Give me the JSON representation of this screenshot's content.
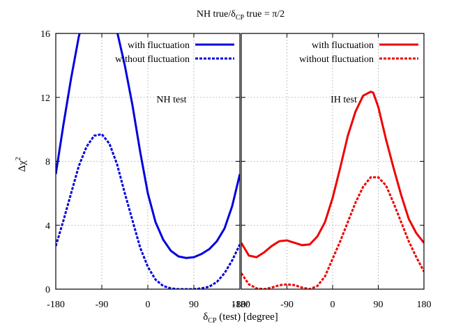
{
  "title": "NH true/δ_CP true = π/2",
  "title_parts": {
    "a": "NH true/δ",
    "sub": "CP",
    "b": " true = π/2"
  },
  "xlabel_parts": {
    "a": "δ",
    "sub": "CP",
    "b": " (test) [degree]"
  },
  "ylabel_parts": {
    "a": "Δχ",
    "sup": "2"
  },
  "chart_data": [
    {
      "type": "line",
      "panel_label": "NH test",
      "xlim": [
        -180,
        180
      ],
      "ylim": [
        0,
        16
      ],
      "grid": true,
      "legend_position": "top-right",
      "x_tick_labels": [
        "-180",
        "-90",
        "0",
        "90",
        "180/"
      ],
      "y_tick_labels": [
        "0",
        "4",
        "8",
        "12",
        "16"
      ],
      "series": [
        {
          "name": "with fluctuation",
          "color": "#0000dd",
          "dash": "solid",
          "x": [
            -180,
            -165,
            -150,
            -135,
            -120,
            -105,
            -90,
            -75,
            -60,
            -45,
            -30,
            -15,
            0,
            15,
            30,
            45,
            60,
            75,
            90,
            105,
            120,
            135,
            150,
            165,
            180
          ],
          "y": [
            7.2,
            10.3,
            13.2,
            15.8,
            17.6,
            18.3,
            18.2,
            17.5,
            16.1,
            14.0,
            11.5,
            8.6,
            6.0,
            4.2,
            3.1,
            2.4,
            2.05,
            1.95,
            2.0,
            2.2,
            2.5,
            3.0,
            3.8,
            5.2,
            7.2
          ]
        },
        {
          "name": "without fluctuation",
          "color": "#0000dd",
          "dash": "dashed",
          "x": [
            -180,
            -165,
            -150,
            -135,
            -120,
            -105,
            -90,
            -75,
            -60,
            -45,
            -30,
            -15,
            0,
            15,
            30,
            45,
            60,
            75,
            90,
            105,
            120,
            135,
            150,
            165,
            180
          ],
          "y": [
            2.7,
            4.3,
            6.0,
            7.7,
            8.9,
            9.6,
            9.7,
            9.1,
            7.8,
            6.0,
            4.3,
            2.6,
            1.4,
            0.6,
            0.2,
            0.05,
            0.0,
            0.0,
            0.0,
            0.05,
            0.15,
            0.45,
            1.0,
            1.8,
            2.8
          ]
        }
      ]
    },
    {
      "type": "line",
      "panel_label": "IH test",
      "xlim": [
        -180,
        180
      ],
      "ylim": [
        0,
        16
      ],
      "grid": true,
      "legend_position": "top-right",
      "x_tick_labels": [
        "-180",
        "-90",
        "0",
        "90",
        "180"
      ],
      "y_tick_labels": [],
      "series": [
        {
          "name": "with fluctuation",
          "color": "#ee0000",
          "dash": "solid",
          "x": [
            -180,
            -165,
            -150,
            -135,
            -120,
            -105,
            -90,
            -75,
            -60,
            -45,
            -30,
            -15,
            0,
            15,
            30,
            45,
            60,
            75,
            80,
            90,
            105,
            120,
            135,
            150,
            165,
            180
          ],
          "y": [
            2.9,
            2.1,
            2.0,
            2.3,
            2.7,
            3.0,
            3.05,
            2.9,
            2.75,
            2.8,
            3.3,
            4.2,
            5.7,
            7.6,
            9.6,
            11.1,
            12.1,
            12.35,
            12.3,
            11.4,
            9.4,
            7.6,
            5.9,
            4.4,
            3.5,
            2.9
          ],
          "_note": ""
        },
        {
          "name": "without fluctuation",
          "color": "#ee0000",
          "dash": "dashed",
          "x": [
            -180,
            -165,
            -150,
            -135,
            -120,
            -105,
            -90,
            -75,
            -60,
            -45,
            -30,
            -15,
            0,
            15,
            30,
            45,
            60,
            75,
            90,
            105,
            120,
            135,
            150,
            165,
            180
          ],
          "y": [
            1.0,
            0.3,
            0.05,
            0.0,
            0.1,
            0.25,
            0.3,
            0.25,
            0.1,
            0.0,
            0.2,
            0.8,
            1.9,
            3.0,
            4.2,
            5.4,
            6.4,
            7.0,
            7.0,
            6.5,
            5.4,
            4.2,
            3.0,
            2.0,
            1.1
          ]
        }
      ]
    }
  ]
}
